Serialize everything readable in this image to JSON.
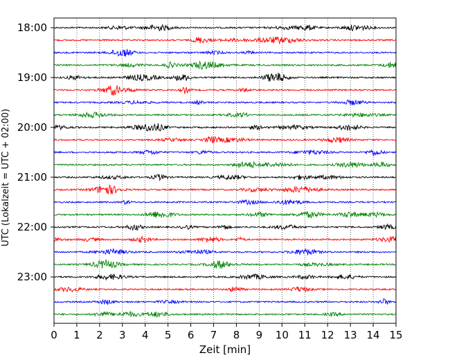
{
  "chart_data": {
    "type": "line",
    "title": "",
    "xlabel": "Zeit  [min]",
    "ylabel": "UTC (Lokalzeit = UTC + 02:00)",
    "xlim": [
      0,
      15
    ],
    "x_ticks": [
      "0",
      "1",
      "2",
      "3",
      "4",
      "5",
      "6",
      "7",
      "8",
      "9",
      "10",
      "11",
      "12",
      "13",
      "14",
      "15"
    ],
    "y_tick_labels": [
      "18:00",
      "19:00",
      "20:00",
      "21:00",
      "22:00",
      "23:00"
    ],
    "grid": "vertical dotted lines at each minute",
    "trace_interval_minutes": 15,
    "trace_start_times": [
      "18:00",
      "18:15",
      "18:30",
      "18:45",
      "19:00",
      "19:15",
      "19:30",
      "19:45",
      "20:00",
      "20:15",
      "20:30",
      "20:45",
      "21:00",
      "21:15",
      "21:30",
      "21:45",
      "22:00",
      "22:15",
      "22:30",
      "22:45",
      "23:00",
      "23:15",
      "23:30",
      "23:45"
    ],
    "trace_color_cycle": [
      "#000000",
      "#ff0000",
      "#0000ff",
      "#008000"
    ],
    "series_description": "seismic helicorder traces, low-amplitude noise"
  }
}
